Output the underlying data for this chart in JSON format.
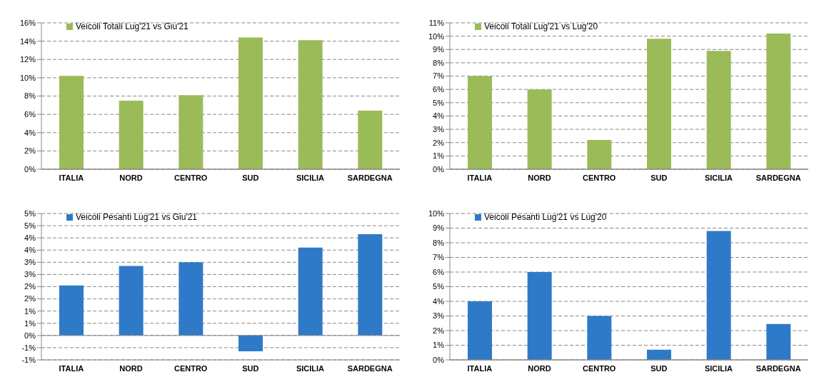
{
  "chart_data": [
    {
      "type": "bar",
      "categories": [
        "ITALIA",
        "NORD",
        "CENTRO",
        "SUD",
        "SICILIA",
        "SARDEGNA"
      ],
      "series": [
        {
          "name": "Veicoli Totali Lug'21 vs Giu'21",
          "color": "#9bbb59",
          "values": [
            10.2,
            7.5,
            8.1,
            14.4,
            14.1,
            6.4
          ]
        }
      ],
      "ylim": [
        0,
        16
      ],
      "yticks": [
        {
          "value": 0,
          "label": "0%"
        },
        {
          "value": 2,
          "label": "2%"
        },
        {
          "value": 4,
          "label": "4%"
        },
        {
          "value": 6,
          "label": "6%"
        },
        {
          "value": 8,
          "label": "8%"
        },
        {
          "value": 10,
          "label": "10%"
        },
        {
          "value": 12,
          "label": "12%"
        },
        {
          "value": 14,
          "label": "14%"
        },
        {
          "value": 16,
          "label": "16%"
        }
      ],
      "grid": "y",
      "legend": "top left"
    },
    {
      "type": "bar",
      "categories": [
        "ITALIA",
        "NORD",
        "CENTRO",
        "SUD",
        "SICILIA",
        "SARDEGNA"
      ],
      "series": [
        {
          "name": "Veicoli Totali Lug'21 vs Lug'20",
          "color": "#9bbb59",
          "values": [
            7.0,
            6.0,
            2.2,
            9.8,
            8.9,
            10.2
          ]
        }
      ],
      "ylim": [
        0,
        11
      ],
      "yticks": [
        {
          "value": 0,
          "label": "0%"
        },
        {
          "value": 1,
          "label": "1%"
        },
        {
          "value": 2,
          "label": "2%"
        },
        {
          "value": 3,
          "label": "3%"
        },
        {
          "value": 4,
          "label": "4%"
        },
        {
          "value": 5,
          "label": "5%"
        },
        {
          "value": 6,
          "label": "6%"
        },
        {
          "value": 7,
          "label": "7%"
        },
        {
          "value": 8,
          "label": "8%"
        },
        {
          "value": 9,
          "label": "9%"
        },
        {
          "value": 10,
          "label": "10%"
        },
        {
          "value": 11,
          "label": "11%"
        }
      ],
      "grid": "y",
      "legend": "top left"
    },
    {
      "type": "bar",
      "categories": [
        "ITALIA",
        "NORD",
        "CENTRO",
        "SUD",
        "SICILIA",
        "SARDEGNA"
      ],
      "series": [
        {
          "name": "Veicoli Pesanti Lug'21 vs Giu'21",
          "color": "#2f7ac8",
          "values": [
            2.05,
            2.85,
            3.0,
            -0.65,
            3.6,
            4.15
          ]
        }
      ],
      "ylim": [
        -1,
        5
      ],
      "yticks": [
        {
          "value": -1,
          "label": "-1%"
        },
        {
          "value": -0.5,
          "label": "-1%"
        },
        {
          "value": 0,
          "label": "0%"
        },
        {
          "value": 0.5,
          "label": "1%"
        },
        {
          "value": 1,
          "label": "1%"
        },
        {
          "value": 1.5,
          "label": "2%"
        },
        {
          "value": 2,
          "label": "2%"
        },
        {
          "value": 2.5,
          "label": "3%"
        },
        {
          "value": 3,
          "label": "3%"
        },
        {
          "value": 3.5,
          "label": "4%"
        },
        {
          "value": 4,
          "label": "4%"
        },
        {
          "value": 4.5,
          "label": "5%"
        },
        {
          "value": 5,
          "label": "5%"
        }
      ],
      "grid": "y",
      "legend": "top left"
    },
    {
      "type": "bar",
      "categories": [
        "ITALIA",
        "NORD",
        "CENTRO",
        "SUD",
        "SICILIA",
        "SARDEGNA"
      ],
      "series": [
        {
          "name": "Veicoli Pesanti Lug'21 vs Lug'20",
          "color": "#2f7ac8",
          "values": [
            4.0,
            6.0,
            3.0,
            0.7,
            8.8,
            2.45
          ]
        }
      ],
      "ylim": [
        0,
        10
      ],
      "yticks": [
        {
          "value": 0,
          "label": "0%"
        },
        {
          "value": 1,
          "label": "1%"
        },
        {
          "value": 2,
          "label": "2%"
        },
        {
          "value": 3,
          "label": "3%"
        },
        {
          "value": 4,
          "label": "4%"
        },
        {
          "value": 5,
          "label": "5%"
        },
        {
          "value": 6,
          "label": "6%"
        },
        {
          "value": 7,
          "label": "7%"
        },
        {
          "value": 8,
          "label": "8%"
        },
        {
          "value": 9,
          "label": "9%"
        },
        {
          "value": 10,
          "label": "10%"
        }
      ],
      "grid": "y",
      "legend": "top left"
    }
  ]
}
